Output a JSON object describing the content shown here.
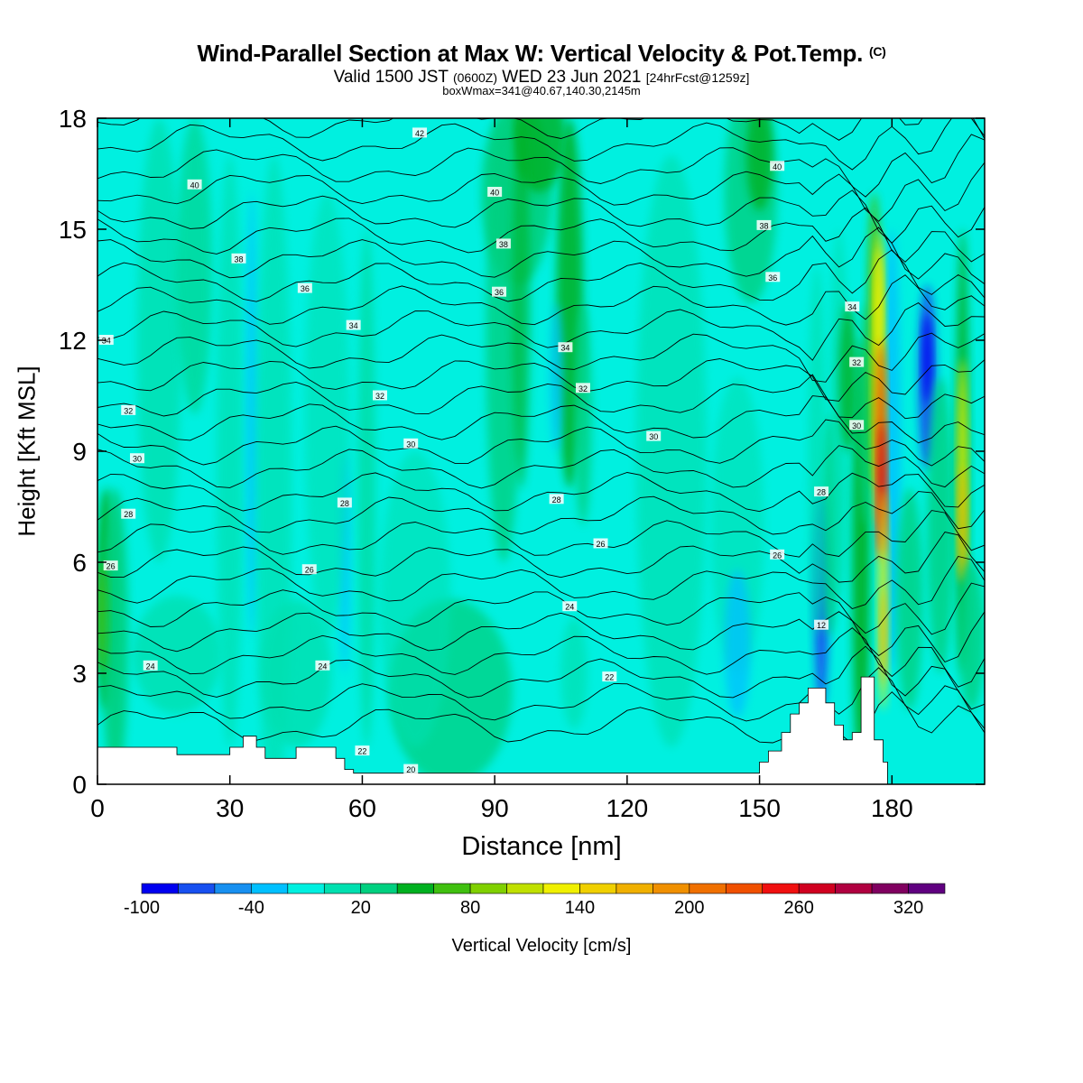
{
  "title": {
    "main": "Wind-Parallel Section at Max W: Vertical Velocity & Pot.Temp.",
    "tag": "(C)",
    "valid_prefix": "Valid 1500 JST",
    "valid_zone": "(0600Z)",
    "valid_date": "WED 23 Jun 2021",
    "forecast": "[24hrFcst@1259z]",
    "boxinfo": "boxWmax=341@40.67,140.30,2145m"
  },
  "chart_data": {
    "type": "heatmap",
    "xlabel": "Distance [nm]",
    "ylabel": "Height [Kft MSL]",
    "xlim": [
      0,
      201
    ],
    "ylim": [
      0,
      18
    ],
    "x_ticks": [
      0,
      30,
      60,
      90,
      120,
      150,
      180
    ],
    "y_ticks": [
      0,
      3,
      6,
      9,
      12,
      15,
      18
    ],
    "colorbar": {
      "label": "Vertical Velocity [cm/s]",
      "tick_labels": [
        "-100",
        "-40",
        "20",
        "80",
        "140",
        "200",
        "260",
        "320"
      ],
      "bins": [
        -100,
        -80,
        -60,
        -40,
        -20,
        0,
        20,
        40,
        60,
        80,
        100,
        120,
        140,
        160,
        180,
        200,
        220,
        240,
        260,
        280,
        300,
        320,
        340
      ],
      "colors": [
        "#0000f0",
        "#1850f0",
        "#1890f0",
        "#00c0ff",
        "#00f0e0",
        "#00e0b0",
        "#00d080",
        "#00b020",
        "#40c010",
        "#80d000",
        "#c0e000",
        "#f0f000",
        "#f0d000",
        "#f0b000",
        "#f09000",
        "#f07000",
        "#f05000",
        "#f01010",
        "#d00020",
        "#b00040",
        "#800060",
        "#600080"
      ]
    },
    "theta_contour_labels": [
      {
        "x": 73,
        "y": 17.6,
        "label": "42"
      },
      {
        "x": 22,
        "y": 16.2,
        "label": "40"
      },
      {
        "x": 90,
        "y": 16.0,
        "label": "40"
      },
      {
        "x": 154,
        "y": 16.7,
        "label": "40"
      },
      {
        "x": 32,
        "y": 14.2,
        "label": "38"
      },
      {
        "x": 92,
        "y": 14.6,
        "label": "38"
      },
      {
        "x": 151,
        "y": 15.1,
        "label": "38"
      },
      {
        "x": 47,
        "y": 13.4,
        "label": "36"
      },
      {
        "x": 91,
        "y": 13.3,
        "label": "36"
      },
      {
        "x": 153,
        "y": 13.7,
        "label": "36"
      },
      {
        "x": 2,
        "y": 12.0,
        "label": "34"
      },
      {
        "x": 58,
        "y": 12.4,
        "label": "34"
      },
      {
        "x": 106,
        "y": 11.8,
        "label": "34"
      },
      {
        "x": 171,
        "y": 12.9,
        "label": "34"
      },
      {
        "x": 7,
        "y": 10.1,
        "label": "32"
      },
      {
        "x": 64,
        "y": 10.5,
        "label": "32"
      },
      {
        "x": 110,
        "y": 10.7,
        "label": "32"
      },
      {
        "x": 172,
        "y": 11.4,
        "label": "32"
      },
      {
        "x": 9,
        "y": 8.8,
        "label": "30"
      },
      {
        "x": 71,
        "y": 9.2,
        "label": "30"
      },
      {
        "x": 126,
        "y": 9.4,
        "label": "30"
      },
      {
        "x": 172,
        "y": 9.7,
        "label": "30"
      },
      {
        "x": 7,
        "y": 7.3,
        "label": "28"
      },
      {
        "x": 56,
        "y": 7.6,
        "label": "28"
      },
      {
        "x": 104,
        "y": 7.7,
        "label": "28"
      },
      {
        "x": 164,
        "y": 7.9,
        "label": "28"
      },
      {
        "x": 3,
        "y": 5.9,
        "label": "26"
      },
      {
        "x": 48,
        "y": 5.8,
        "label": "26"
      },
      {
        "x": 114,
        "y": 6.5,
        "label": "26"
      },
      {
        "x": 154,
        "y": 6.2,
        "label": "26"
      },
      {
        "x": 12,
        "y": 3.2,
        "label": "24"
      },
      {
        "x": 51,
        "y": 3.2,
        "label": "24"
      },
      {
        "x": 107,
        "y": 4.8,
        "label": "24"
      },
      {
        "x": 60,
        "y": 0.9,
        "label": "22"
      },
      {
        "x": 116,
        "y": 2.9,
        "label": "22"
      },
      {
        "x": 164,
        "y": 4.3,
        "label": "12"
      },
      {
        "x": 71,
        "y": 0.4,
        "label": "20"
      }
    ]
  }
}
